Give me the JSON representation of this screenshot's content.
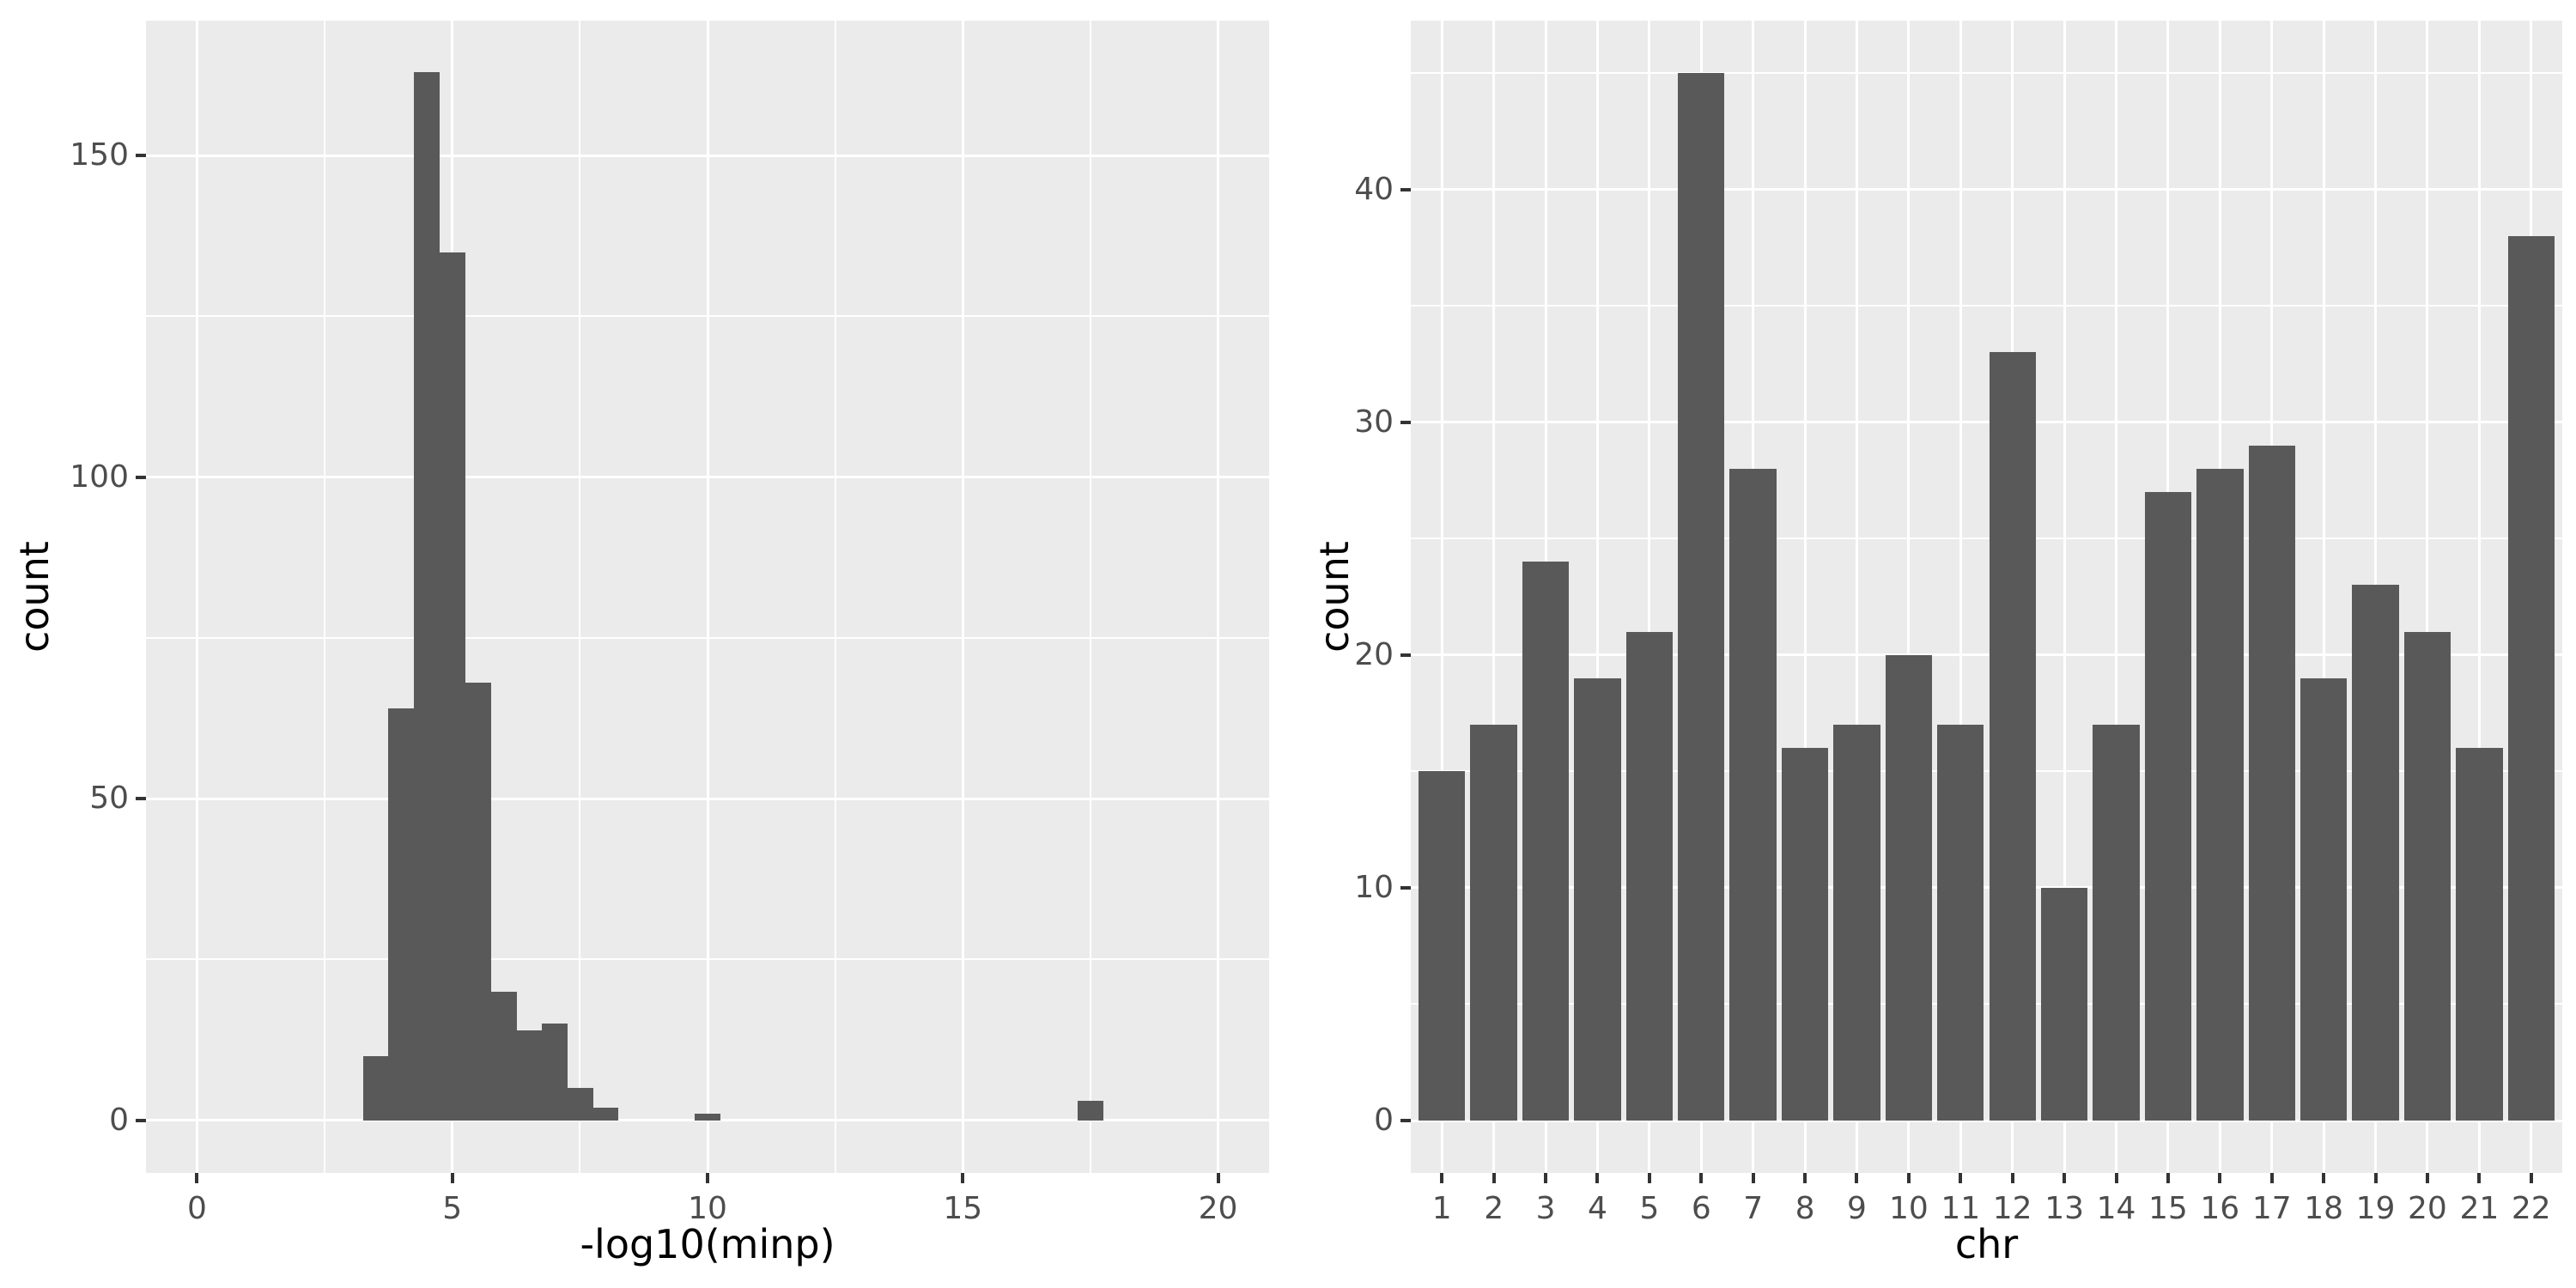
{
  "colors": {
    "bar_fill": "#595959",
    "panel_background": "#EBEBEB",
    "gridline": "#FFFFFF",
    "tick_label": "#4D4D4D",
    "tick_mark": "#333333",
    "axis_title": "#000000",
    "page_background": "#FFFFFF"
  },
  "chart_data": [
    {
      "type": "bar",
      "subtype": "histogram",
      "title": "",
      "xlabel": "-log10(minp)",
      "ylabel": "count",
      "xlim": [
        -1,
        21
      ],
      "ylim": [
        -8.2,
        171
      ],
      "x_ticks": [
        0,
        5,
        10,
        15,
        20
      ],
      "x_minor_gridlines": [
        2.5,
        7.5,
        12.5,
        17.5
      ],
      "y_ticks": [
        0,
        50,
        100,
        150
      ],
      "y_minor_gridlines": [
        25,
        75,
        125
      ],
      "grid": "on",
      "legend": "none",
      "binwidth": 0.5,
      "bins": [
        {
          "x0": 3.25,
          "x1": 3.75,
          "count": 10
        },
        {
          "x0": 3.75,
          "x1": 4.25,
          "count": 64
        },
        {
          "x0": 4.25,
          "x1": 4.75,
          "count": 163
        },
        {
          "x0": 4.75,
          "x1": 5.25,
          "count": 135
        },
        {
          "x0": 5.25,
          "x1": 5.75,
          "count": 68
        },
        {
          "x0": 5.75,
          "x1": 6.25,
          "count": 20
        },
        {
          "x0": 6.25,
          "x1": 6.75,
          "count": 14
        },
        {
          "x0": 6.75,
          "x1": 7.25,
          "count": 15
        },
        {
          "x0": 7.25,
          "x1": 7.75,
          "count": 5
        },
        {
          "x0": 7.75,
          "x1": 8.25,
          "count": 2
        },
        {
          "x0": 9.75,
          "x1": 10.25,
          "count": 1
        },
        {
          "x0": 17.25,
          "x1": 17.75,
          "count": 3
        }
      ]
    },
    {
      "type": "bar",
      "subtype": "column",
      "title": "",
      "xlabel": "chr",
      "ylabel": "count",
      "categories": [
        "1",
        "2",
        "3",
        "4",
        "5",
        "6",
        "7",
        "8",
        "9",
        "10",
        "11",
        "12",
        "13",
        "14",
        "15",
        "16",
        "17",
        "18",
        "19",
        "20",
        "21",
        "22"
      ],
      "values": [
        15,
        17,
        24,
        19,
        21,
        45,
        28,
        16,
        17,
        20,
        17,
        33,
        10,
        17,
        27,
        28,
        29,
        19,
        23,
        21,
        16,
        38
      ],
      "x_domain": [
        0.4,
        22.6
      ],
      "ylim": [
        -2.25,
        47.25
      ],
      "y_ticks": [
        0,
        10,
        20,
        30,
        40
      ],
      "y_minor_gridlines": [
        5,
        15,
        25,
        35,
        45
      ],
      "grid": "on",
      "legend": "none",
      "bar_width": 0.9
    }
  ]
}
